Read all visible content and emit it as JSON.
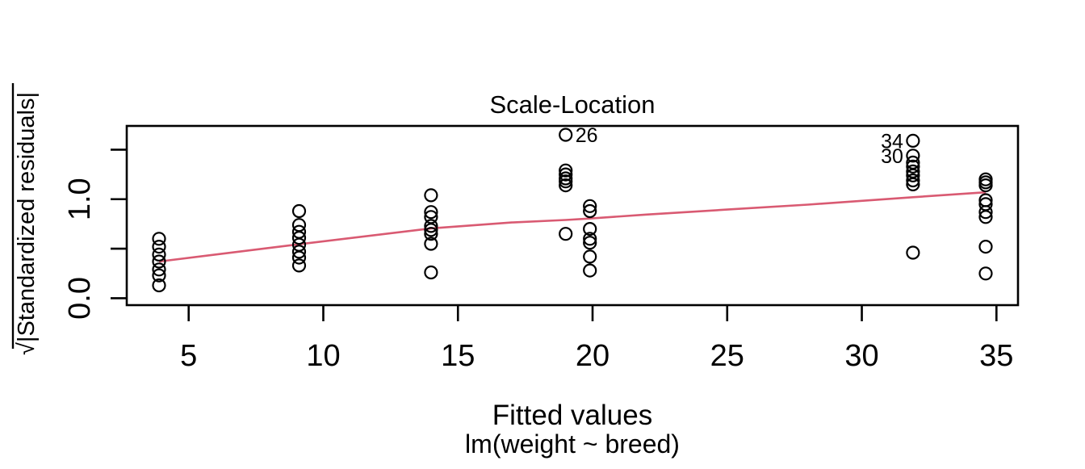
{
  "chart_data": {
    "type": "scatter",
    "title": "Scale-Location",
    "xlabel": "Fitted values",
    "sublabel": "lm(weight ~ breed)",
    "ylabel": "√|Standardized residuals|",
    "xlim": [
      2.7,
      35.8
    ],
    "ylim": [
      -0.07,
      1.74
    ],
    "grid": false,
    "x_ticks": [
      {
        "value": 5,
        "label": "5"
      },
      {
        "value": 10,
        "label": "10"
      },
      {
        "value": 15,
        "label": "15"
      },
      {
        "value": 20,
        "label": "20"
      },
      {
        "value": 25,
        "label": "25"
      },
      {
        "value": 30,
        "label": "30"
      },
      {
        "value": 35,
        "label": "35"
      }
    ],
    "y_ticks": [
      {
        "value": 0.0,
        "label": "0.0"
      },
      {
        "value": 0.5,
        "label": ""
      },
      {
        "value": 1.0,
        "label": "1.0"
      },
      {
        "value": 1.5,
        "label": ""
      }
    ],
    "point_color": "#000000",
    "groups": [
      {
        "fitted": 3.9,
        "values": [
          0.6,
          0.52,
          0.44,
          0.37,
          0.29,
          0.23,
          0.13
        ]
      },
      {
        "fitted": 9.1,
        "values": [
          0.88,
          0.74,
          0.67,
          0.61,
          0.54,
          0.47,
          0.41,
          0.33
        ]
      },
      {
        "fitted": 14.0,
        "values": [
          1.04,
          0.87,
          0.82,
          0.73,
          0.69,
          0.65,
          0.55,
          0.26
        ]
      },
      {
        "fitted": 19.0,
        "values": [
          1.65,
          1.29,
          1.25,
          1.21,
          1.18,
          1.14,
          0.65
        ]
      },
      {
        "fitted": 19.9,
        "values": [
          0.93,
          0.88,
          0.7,
          0.6,
          0.56,
          0.42,
          0.28
        ]
      },
      {
        "fitted": 31.9,
        "values": [
          1.59,
          1.44,
          1.37,
          1.33,
          1.28,
          1.24,
          1.19,
          1.15,
          0.46
        ]
      },
      {
        "fitted": 34.6,
        "values": [
          1.2,
          1.17,
          1.14,
          0.99,
          0.95,
          0.87,
          0.82,
          0.52,
          0.25
        ]
      }
    ],
    "labeled_points": [
      {
        "label": "26",
        "x": 19.0,
        "y": 1.65,
        "side": "right"
      },
      {
        "label": "34",
        "x": 31.9,
        "y": 1.59,
        "side": "left"
      },
      {
        "label": "30",
        "x": 31.9,
        "y": 1.44,
        "side": "left"
      }
    ],
    "smooth_line": {
      "color": "#d95a72",
      "points": [
        [
          3.9,
          0.37
        ],
        [
          9.1,
          0.545
        ],
        [
          14.0,
          0.705
        ],
        [
          17.0,
          0.765
        ],
        [
          19.0,
          0.79
        ],
        [
          19.9,
          0.805
        ],
        [
          22.0,
          0.845
        ],
        [
          25.0,
          0.895
        ],
        [
          28.0,
          0.945
        ],
        [
          31.9,
          1.02
        ],
        [
          34.6,
          1.07
        ]
      ]
    }
  }
}
